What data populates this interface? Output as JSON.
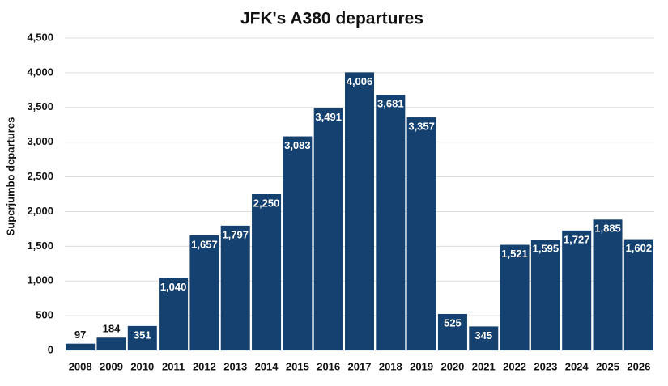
{
  "chart_data": {
    "type": "bar",
    "title": "JFK's A380 departures",
    "y_label": "Superjumbo departures",
    "categories": [
      "2008",
      "2009",
      "2010",
      "2011",
      "2012",
      "2013",
      "2014",
      "2015",
      "2016",
      "2017",
      "2018",
      "2019",
      "2020",
      "2021",
      "2022",
      "2023",
      "2024",
      "2025",
      "2026"
    ],
    "values": [
      97,
      184,
      351,
      1040,
      1657,
      1797,
      2250,
      3083,
      3491,
      4006,
      3681,
      3357,
      525,
      345,
      1521,
      1595,
      1727,
      1885,
      1602
    ],
    "value_labels": [
      "97",
      "184",
      "351",
      "1,040",
      "1,657",
      "1,797",
      "2,250",
      "3,083",
      "3,491",
      "4,006",
      "3,681",
      "3,357",
      "525",
      "345",
      "1,521",
      "1,595",
      "1,727",
      "1,885",
      "1,602"
    ],
    "color": "#14416f",
    "ylim": [
      0,
      4500
    ],
    "yticks": [
      0,
      500,
      {
        "value": 1000,
        "label": "1,000"
      },
      {
        "value": 1500,
        "label": "1,500"
      },
      {
        "value": 2000,
        "label": "2,000"
      },
      {
        "value": 2500,
        "label": "2,500"
      },
      {
        "value": 3000,
        "label": "3,000"
      },
      {
        "value": 3500,
        "label": "3,500"
      },
      {
        "value": 4000,
        "label": "4,000"
      },
      {
        "value": 4500,
        "label": "4,500"
      }
    ],
    "grid": true
  }
}
